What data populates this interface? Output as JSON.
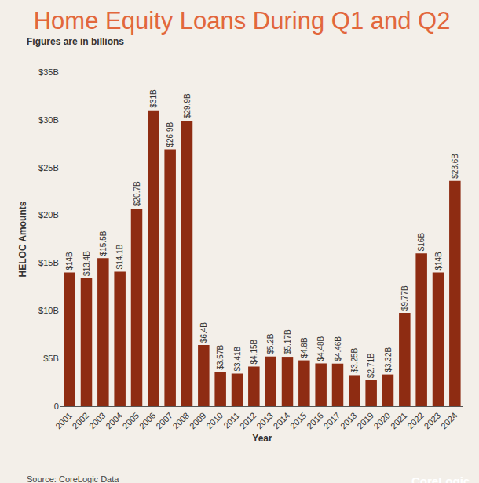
{
  "chart_data": {
    "type": "bar",
    "title": "Home Equity Loans During Q1 and Q2",
    "subtitle": "Figures are in billions",
    "x_label": "Year",
    "y_label": "HELOC Amounts",
    "annotations": [
      "Source: CoreLogic Data",
      "CoreLogic"
    ],
    "categories": [
      "2001",
      "2002",
      "2003",
      "2004",
      "2005",
      "2006",
      "2007",
      "2008",
      "2009",
      "2010",
      "2011",
      "2012",
      "2013",
      "2014",
      "2015",
      "2016",
      "2017",
      "2018",
      "2019",
      "2020",
      "2021",
      "2022",
      "2023",
      "2024"
    ],
    "values": [
      14,
      13.4,
      15.5,
      14.1,
      20.7,
      31,
      26.9,
      29.9,
      6.4,
      3.57,
      3.41,
      4.15,
      5.2,
      5.17,
      4.8,
      4.48,
      4.46,
      3.25,
      2.71,
      3.32,
      9.77,
      16,
      14,
      23.6
    ],
    "value_labels": [
      "$14B",
      "$13.4B",
      "$15.5B",
      "$14.1B",
      "$20.7B",
      "$31B",
      "$26.9B",
      "$29.9B",
      "$6.4B",
      "$3.57B",
      "$3.41B",
      "$4.15B",
      "$5.2B",
      "$5.17B",
      "$4.8B",
      "$4.48B",
      "$4.46B",
      "$3.25B",
      "$2.71B",
      "$3.32B",
      "$9.77B",
      "$16B",
      "$14B",
      "$23.6B"
    ],
    "data_labels": true,
    "color": "#8e2c12",
    "ylim": [
      0,
      35
    ],
    "yticks": [
      0,
      {
        "value": 5,
        "label": "$5B"
      },
      {
        "value": 10,
        "label": "$10B"
      },
      {
        "value": 15,
        "label": "$15B"
      },
      {
        "value": 20,
        "label": "$20B"
      },
      {
        "value": 25,
        "label": "$25B"
      },
      {
        "value": 30,
        "label": "$30B"
      },
      {
        "value": 35,
        "label": "$35B"
      }
    ],
    "grid": false
  }
}
